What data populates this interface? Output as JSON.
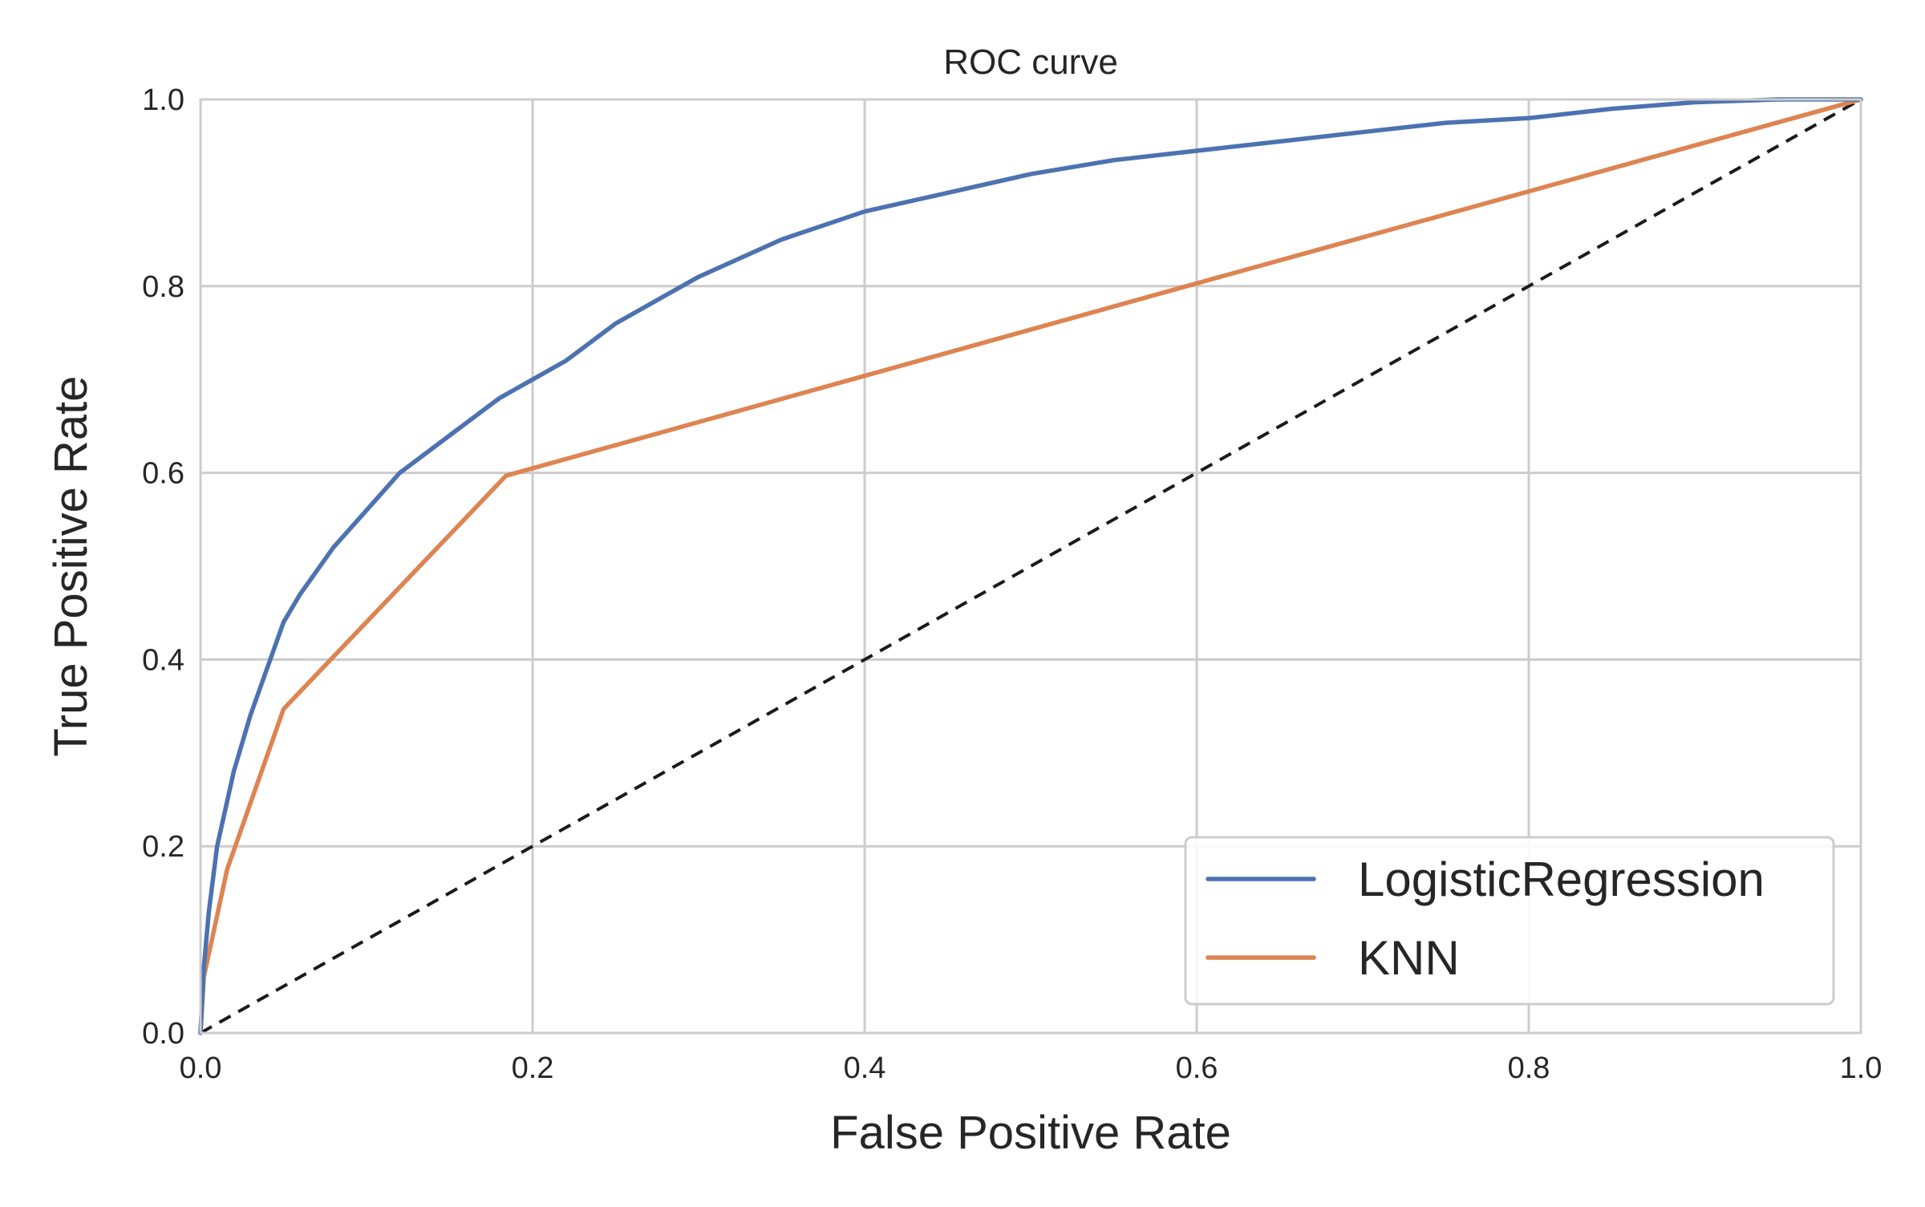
{
  "chart_data": {
    "type": "line",
    "title": "ROC curve",
    "xlabel": "False Positive Rate",
    "ylabel": "True Positive Rate",
    "xlim": [
      0.0,
      1.0
    ],
    "ylim": [
      0.0,
      1.0
    ],
    "xticks": [
      "0.0",
      "0.2",
      "0.4",
      "0.6",
      "0.8",
      "1.0"
    ],
    "yticks": [
      "0.0",
      "0.2",
      "0.4",
      "0.6",
      "0.8",
      "1.0"
    ],
    "grid": true,
    "legend_position": "lower-right",
    "series": [
      {
        "name": "LogisticRegression",
        "color": "#4c72b0",
        "style": "solid",
        "x": [
          0.0,
          0.002,
          0.005,
          0.01,
          0.015,
          0.02,
          0.03,
          0.04,
          0.05,
          0.06,
          0.08,
          0.1,
          0.12,
          0.15,
          0.18,
          0.2,
          0.22,
          0.25,
          0.28,
          0.3,
          0.35,
          0.4,
          0.45,
          0.5,
          0.55,
          0.6,
          0.65,
          0.7,
          0.75,
          0.8,
          0.85,
          0.9,
          0.95,
          1.0
        ],
        "y": [
          0.0,
          0.07,
          0.13,
          0.2,
          0.24,
          0.28,
          0.34,
          0.39,
          0.44,
          0.47,
          0.52,
          0.56,
          0.6,
          0.64,
          0.68,
          0.7,
          0.72,
          0.76,
          0.79,
          0.81,
          0.85,
          0.88,
          0.9,
          0.92,
          0.935,
          0.945,
          0.955,
          0.965,
          0.975,
          0.98,
          0.99,
          0.997,
          1.0,
          1.0
        ]
      },
      {
        "name": "KNN",
        "color": "#dd8452",
        "style": "solid",
        "x": [
          0.0,
          0.002,
          0.016,
          0.05,
          0.184,
          0.6,
          1.0
        ],
        "y": [
          0.0,
          0.06,
          0.175,
          0.347,
          0.597,
          0.803,
          1.0
        ]
      },
      {
        "color": "#1a1a1a",
        "style": "dashed",
        "x": [
          0.0,
          1.0
        ],
        "y": [
          0.0,
          1.0
        ]
      }
    ]
  }
}
